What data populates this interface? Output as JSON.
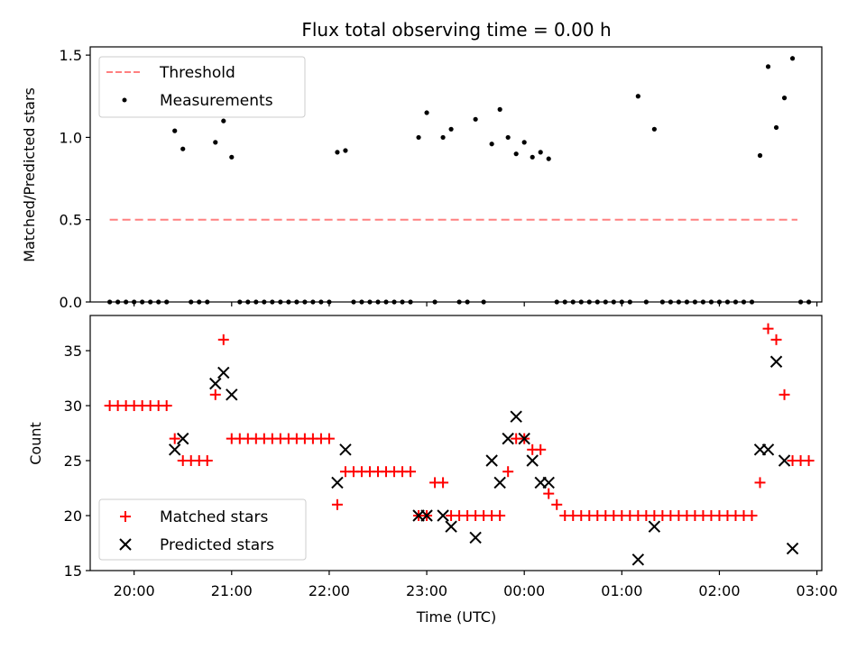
{
  "figure": {
    "title": "Flux total observing time = 0.00 h",
    "xlabel": "Time (UTC)",
    "x_ticks": [
      "20:00",
      "21:00",
      "22:00",
      "23:00",
      "00:00",
      "01:00",
      "02:00",
      "03:00"
    ]
  },
  "chart_data": [
    {
      "type": "scatter",
      "panel": "top",
      "xlabel": "",
      "ylabel": "Matched/Predicted stars",
      "xlim": [
        "19:33",
        "03:03"
      ],
      "ylim": [
        0,
        1.55
      ],
      "y_ticks": [
        "0.0",
        "0.5",
        "1.0",
        "1.5"
      ],
      "legend_position": "upper left",
      "threshold": {
        "name": "Threshold",
        "value": 0.5,
        "x_start": "19:45",
        "x_end": "02:48",
        "color": "#ff8080",
        "style": "dashed"
      },
      "series": [
        {
          "name": "Measurements",
          "color": "#000000",
          "marker": "dot",
          "points": [
            [
              "19:45",
              0
            ],
            [
              "19:50",
              0
            ],
            [
              "19:55",
              0
            ],
            [
              "20:00",
              0
            ],
            [
              "20:05",
              0
            ],
            [
              "20:10",
              0
            ],
            [
              "20:15",
              0
            ],
            [
              "20:20",
              0
            ],
            [
              "20:25",
              1.04
            ],
            [
              "20:30",
              0.93
            ],
            [
              "20:35",
              0
            ],
            [
              "20:40",
              0
            ],
            [
              "20:45",
              0
            ],
            [
              "20:50",
              0.97
            ],
            [
              "20:55",
              1.1
            ],
            [
              "21:00",
              0.88
            ],
            [
              "21:05",
              0
            ],
            [
              "21:10",
              0
            ],
            [
              "21:15",
              0
            ],
            [
              "21:20",
              0
            ],
            [
              "21:25",
              0
            ],
            [
              "21:30",
              0
            ],
            [
              "21:35",
              0
            ],
            [
              "21:40",
              0
            ],
            [
              "21:45",
              0
            ],
            [
              "21:50",
              0
            ],
            [
              "21:55",
              0
            ],
            [
              "22:00",
              0
            ],
            [
              "22:05",
              0.91
            ],
            [
              "22:10",
              0.92
            ],
            [
              "22:15",
              0
            ],
            [
              "22:20",
              0
            ],
            [
              "22:25",
              0
            ],
            [
              "22:30",
              0
            ],
            [
              "22:35",
              0
            ],
            [
              "22:40",
              0
            ],
            [
              "22:45",
              0
            ],
            [
              "22:50",
              0
            ],
            [
              "22:55",
              1.0
            ],
            [
              "23:00",
              1.15
            ],
            [
              "23:05",
              0
            ],
            [
              "23:10",
              1.0
            ],
            [
              "23:15",
              1.05
            ],
            [
              "23:20",
              0
            ],
            [
              "23:25",
              0
            ],
            [
              "23:30",
              1.11
            ],
            [
              "23:35",
              0
            ],
            [
              "23:40",
              0.96
            ],
            [
              "23:45",
              1.17
            ],
            [
              "23:50",
              1.0
            ],
            [
              "23:55",
              0.9
            ],
            [
              "00:00",
              0.97
            ],
            [
              "00:05",
              0.88
            ],
            [
              "00:10",
              0.91
            ],
            [
              "00:15",
              0.87
            ],
            [
              "00:20",
              0
            ],
            [
              "00:25",
              0
            ],
            [
              "00:30",
              0
            ],
            [
              "00:35",
              0
            ],
            [
              "00:40",
              0
            ],
            [
              "00:45",
              0
            ],
            [
              "00:50",
              0
            ],
            [
              "00:55",
              0
            ],
            [
              "01:00",
              0
            ],
            [
              "01:05",
              0
            ],
            [
              "01:10",
              1.25
            ],
            [
              "01:15",
              0
            ],
            [
              "01:20",
              1.05
            ],
            [
              "01:25",
              0
            ],
            [
              "01:30",
              0
            ],
            [
              "01:35",
              0
            ],
            [
              "01:40",
              0
            ],
            [
              "01:45",
              0
            ],
            [
              "01:50",
              0
            ],
            [
              "01:55",
              0
            ],
            [
              "02:00",
              0
            ],
            [
              "02:05",
              0
            ],
            [
              "02:10",
              0
            ],
            [
              "02:15",
              0
            ],
            [
              "02:20",
              0
            ],
            [
              "02:25",
              0.89
            ],
            [
              "02:30",
              1.43
            ],
            [
              "02:35",
              1.06
            ],
            [
              "02:40",
              1.24
            ],
            [
              "02:45",
              1.48
            ],
            [
              "02:50",
              0
            ],
            [
              "02:55",
              0
            ]
          ]
        }
      ]
    },
    {
      "type": "scatter",
      "panel": "bottom",
      "xlabel": "Time (UTC)",
      "ylabel": "Count",
      "xlim": [
        "19:33",
        "03:03"
      ],
      "ylim": [
        15,
        38.2
      ],
      "y_ticks": [
        "15",
        "20",
        "25",
        "30",
        "35"
      ],
      "legend_position": "lower left",
      "series": [
        {
          "name": "Matched stars",
          "color": "#ff0000",
          "marker": "plus",
          "points": [
            [
              "19:45",
              30
            ],
            [
              "19:50",
              30
            ],
            [
              "19:55",
              30
            ],
            [
              "20:00",
              30
            ],
            [
              "20:05",
              30
            ],
            [
              "20:10",
              30
            ],
            [
              "20:15",
              30
            ],
            [
              "20:20",
              30
            ],
            [
              "20:25",
              27
            ],
            [
              "20:30",
              25
            ],
            [
              "20:35",
              25
            ],
            [
              "20:40",
              25
            ],
            [
              "20:45",
              25
            ],
            [
              "20:50",
              31
            ],
            [
              "20:55",
              36
            ],
            [
              "21:00",
              27
            ],
            [
              "21:05",
              27
            ],
            [
              "21:10",
              27
            ],
            [
              "21:15",
              27
            ],
            [
              "21:20",
              27
            ],
            [
              "21:25",
              27
            ],
            [
              "21:30",
              27
            ],
            [
              "21:35",
              27
            ],
            [
              "21:40",
              27
            ],
            [
              "21:45",
              27
            ],
            [
              "21:50",
              27
            ],
            [
              "21:55",
              27
            ],
            [
              "22:00",
              27
            ],
            [
              "22:05",
              21
            ],
            [
              "22:10",
              24
            ],
            [
              "22:15",
              24
            ],
            [
              "22:20",
              24
            ],
            [
              "22:25",
              24
            ],
            [
              "22:30",
              24
            ],
            [
              "22:35",
              24
            ],
            [
              "22:40",
              24
            ],
            [
              "22:45",
              24
            ],
            [
              "22:50",
              24
            ],
            [
              "22:55",
              20
            ],
            [
              "23:00",
              20
            ],
            [
              "23:05",
              23
            ],
            [
              "23:10",
              23
            ],
            [
              "23:15",
              20
            ],
            [
              "23:20",
              20
            ],
            [
              "23:25",
              20
            ],
            [
              "23:30",
              20
            ],
            [
              "23:35",
              20
            ],
            [
              "23:40",
              20
            ],
            [
              "23:45",
              20
            ],
            [
              "23:50",
              24
            ],
            [
              "23:55",
              27
            ],
            [
              "00:00",
              27
            ],
            [
              "00:05",
              26
            ],
            [
              "00:10",
              26
            ],
            [
              "00:15",
              22
            ],
            [
              "00:20",
              21
            ],
            [
              "00:25",
              20
            ],
            [
              "00:30",
              20
            ],
            [
              "00:35",
              20
            ],
            [
              "00:40",
              20
            ],
            [
              "00:45",
              20
            ],
            [
              "00:50",
              20
            ],
            [
              "00:55",
              20
            ],
            [
              "01:00",
              20
            ],
            [
              "01:05",
              20
            ],
            [
              "01:10",
              20
            ],
            [
              "01:15",
              20
            ],
            [
              "01:20",
              20
            ],
            [
              "01:25",
              20
            ],
            [
              "01:30",
              20
            ],
            [
              "01:35",
              20
            ],
            [
              "01:40",
              20
            ],
            [
              "01:45",
              20
            ],
            [
              "01:50",
              20
            ],
            [
              "01:55",
              20
            ],
            [
              "02:00",
              20
            ],
            [
              "02:05",
              20
            ],
            [
              "02:10",
              20
            ],
            [
              "02:15",
              20
            ],
            [
              "02:20",
              20
            ],
            [
              "02:25",
              23
            ],
            [
              "02:30",
              37
            ],
            [
              "02:35",
              36
            ],
            [
              "02:40",
              31
            ],
            [
              "02:45",
              25
            ],
            [
              "02:50",
              25
            ],
            [
              "02:55",
              25
            ]
          ]
        },
        {
          "name": "Predicted stars",
          "color": "#000000",
          "marker": "cross",
          "points": [
            [
              "20:25",
              26
            ],
            [
              "20:30",
              27
            ],
            [
              "20:50",
              32
            ],
            [
              "20:55",
              33
            ],
            [
              "21:00",
              31
            ],
            [
              "22:05",
              23
            ],
            [
              "22:10",
              26
            ],
            [
              "22:55",
              20
            ],
            [
              "23:00",
              20
            ],
            [
              "23:10",
              20
            ],
            [
              "23:15",
              19
            ],
            [
              "23:30",
              18
            ],
            [
              "23:40",
              25
            ],
            [
              "23:45",
              23
            ],
            [
              "23:50",
              27
            ],
            [
              "23:55",
              29
            ],
            [
              "00:00",
              27
            ],
            [
              "00:05",
              25
            ],
            [
              "00:10",
              23
            ],
            [
              "00:15",
              23
            ],
            [
              "01:10",
              16
            ],
            [
              "01:20",
              19
            ],
            [
              "02:25",
              26
            ],
            [
              "02:30",
              26
            ],
            [
              "02:40",
              25
            ],
            [
              "02:45",
              17
            ],
            [
              "02:35",
              34
            ]
          ]
        }
      ]
    }
  ]
}
